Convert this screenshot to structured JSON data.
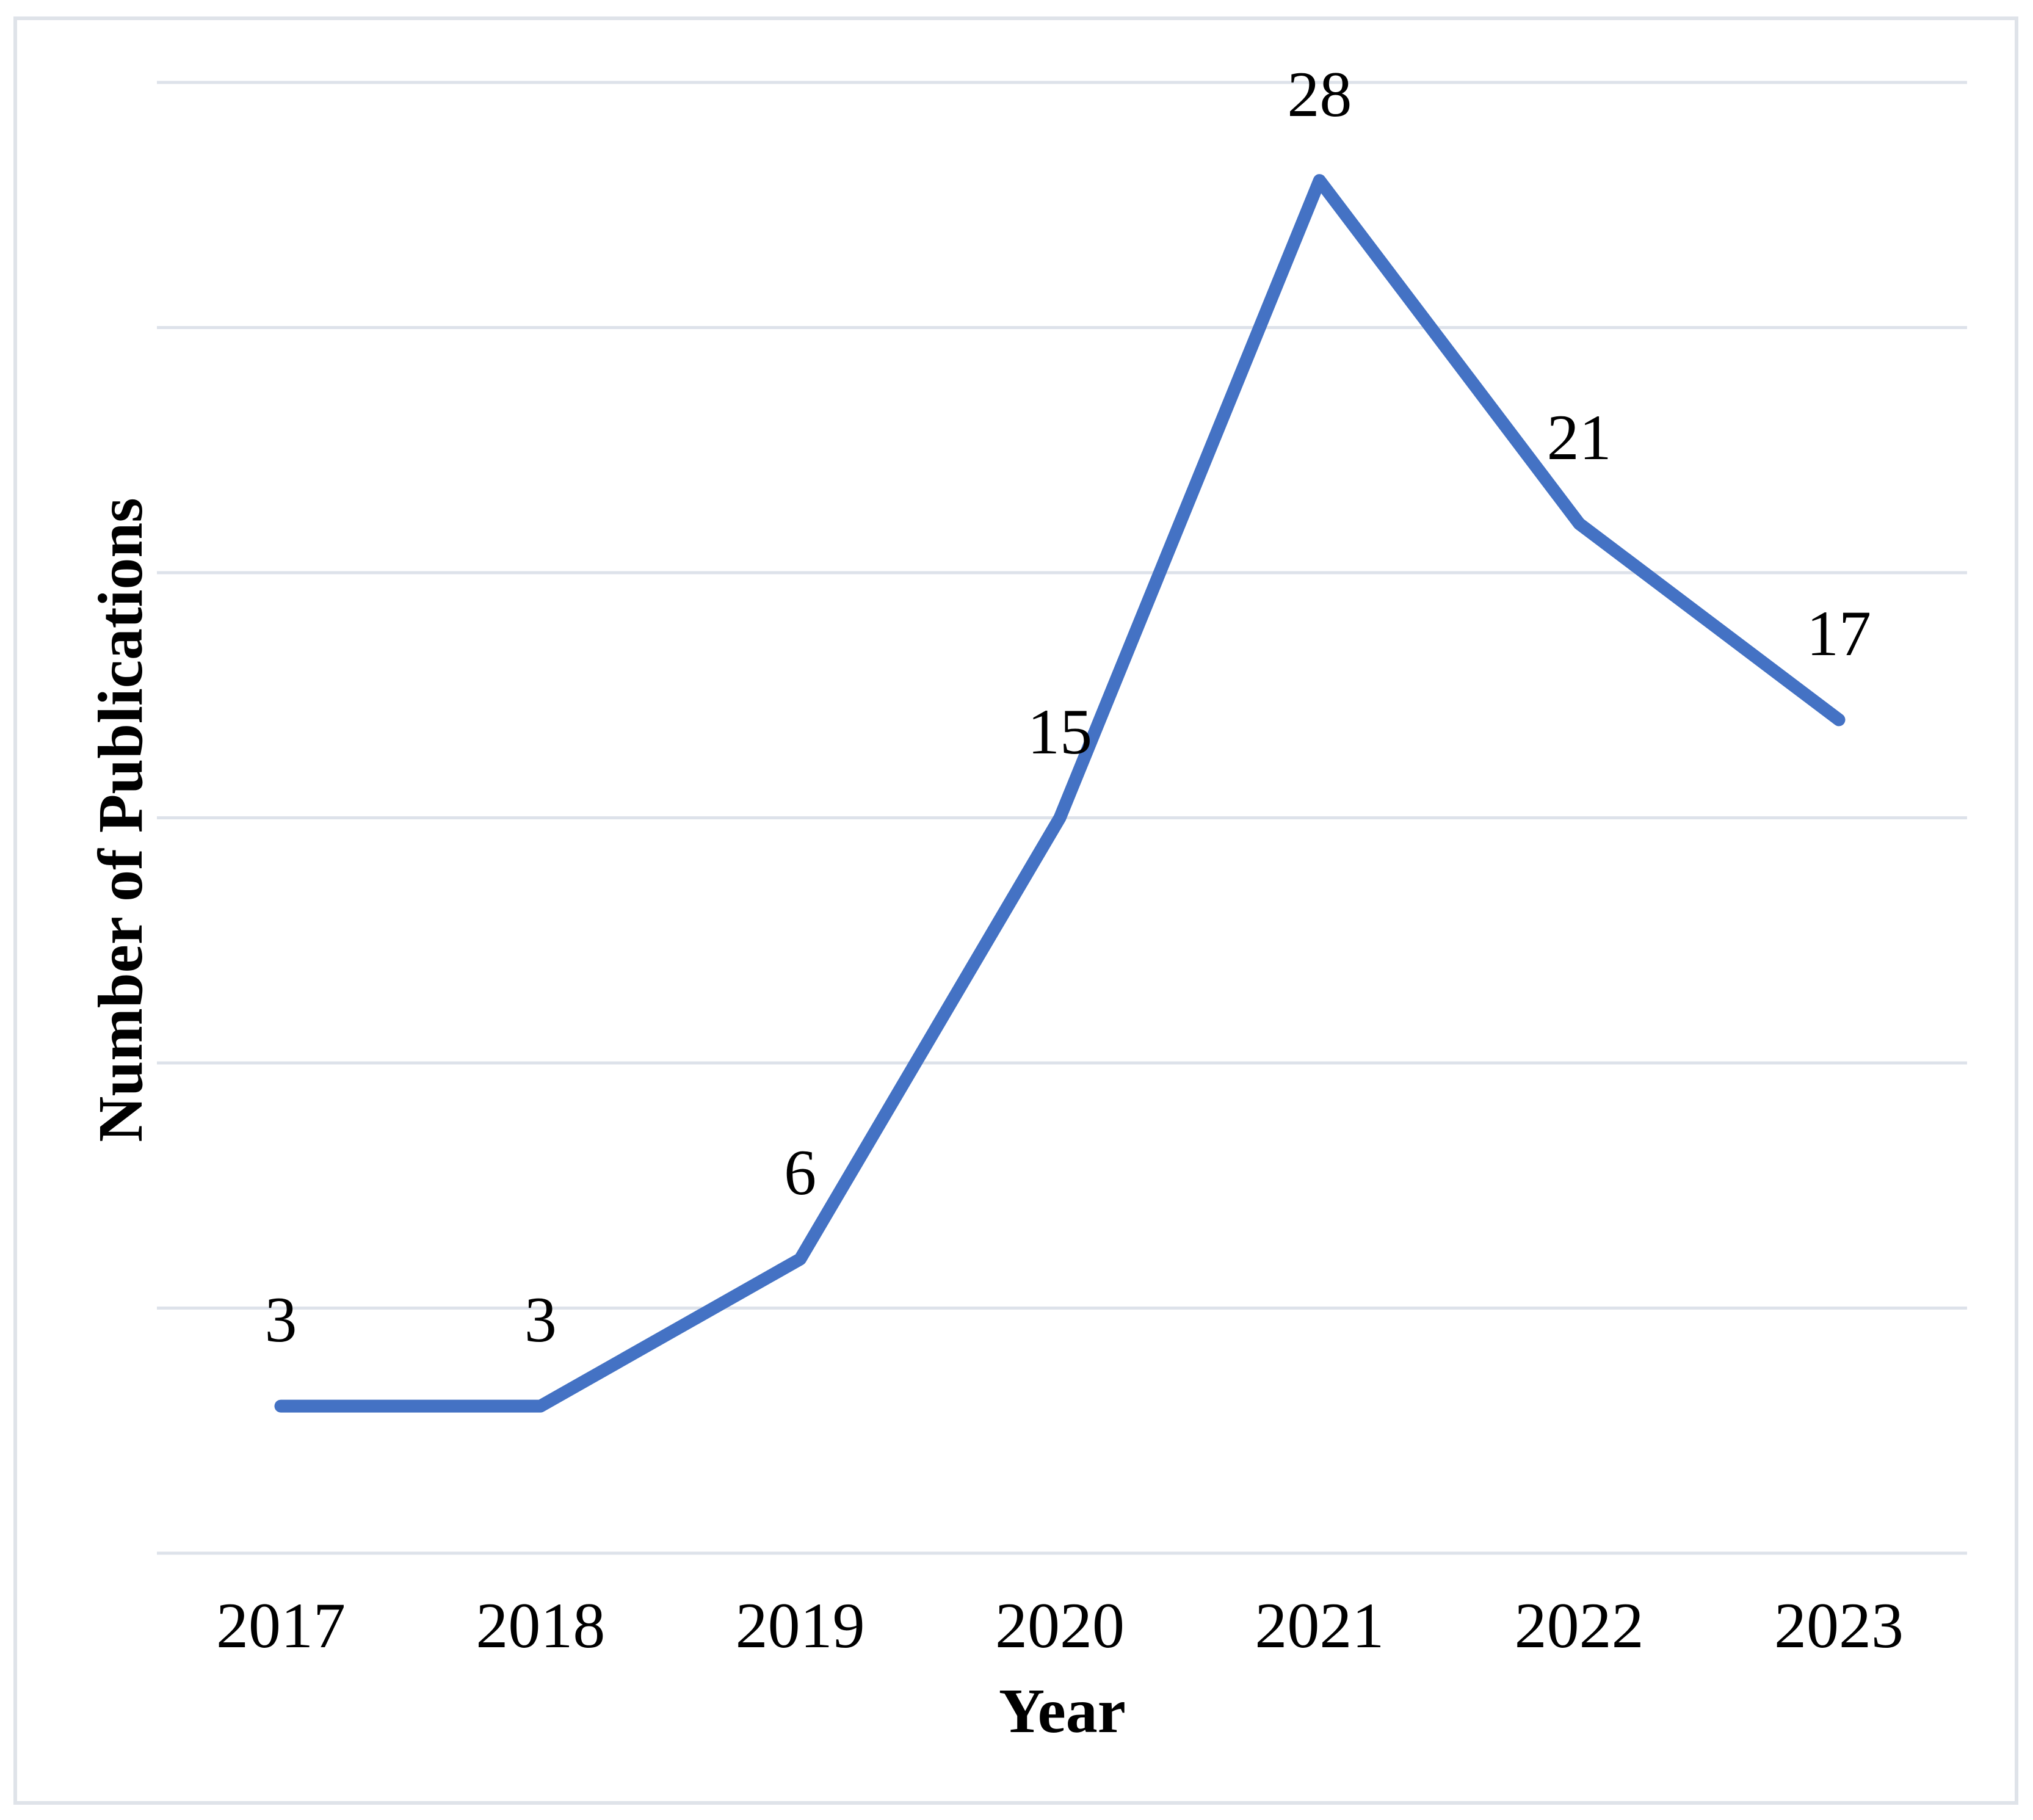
{
  "chart_data": {
    "type": "line",
    "categories": [
      "2017",
      "2018",
      "2019",
      "2020",
      "2021",
      "2022",
      "2023"
    ],
    "series": [
      {
        "name": "Number of Publications",
        "values": [
          3,
          3,
          6,
          15,
          28,
          21,
          17
        ]
      }
    ],
    "data_labels": [
      "3",
      "3",
      "6",
      "15",
      "28",
      "21",
      "17"
    ],
    "title": "",
    "xlabel": "Year",
    "ylabel": "Number of Publications",
    "ylim": [
      0,
      30
    ],
    "ytick_step": 5,
    "yticks_shown": false,
    "grid": "horizontal-only",
    "legend": "none",
    "colors": {
      "line": "#4472C4",
      "gridline": "#dde2ea",
      "frame_border": "#dfe3e9",
      "text": "#000000",
      "background": "#ffffff"
    }
  }
}
